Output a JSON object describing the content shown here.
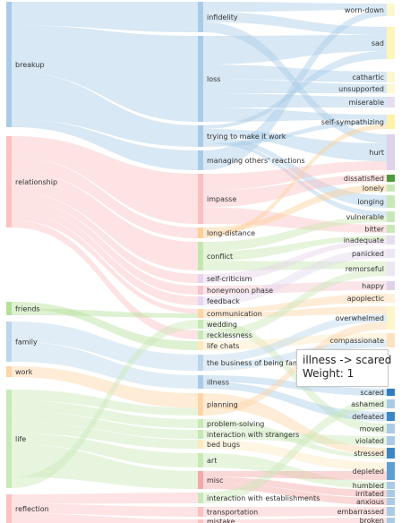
{
  "tooltip": {
    "line1": "illness -> scared",
    "line2": "Weight: 1"
  },
  "sources": [
    {
      "label": "breakup",
      "color": "#a9cbe6"
    },
    {
      "label": "relationship",
      "color": "#fbc1c1"
    },
    {
      "label": "friends",
      "color": "#b5df9c"
    },
    {
      "label": "family",
      "color": "#bcd6ea"
    },
    {
      "label": "work",
      "color": "#fdd5a6"
    },
    {
      "label": "life",
      "color": "#c9e8b8"
    },
    {
      "label": "reflection",
      "color": "#fbc1c1"
    }
  ],
  "middle": [
    {
      "label": "infidelity",
      "color": "#a9cbe6"
    },
    {
      "label": "loss",
      "color": "#a9cbe6"
    },
    {
      "label": "trying to make it work",
      "color": "#a9cbe6"
    },
    {
      "label": "managing others' reactions",
      "color": "#a9cbe6"
    },
    {
      "label": "impasse",
      "color": "#fbc1c1"
    },
    {
      "label": "long-distance",
      "color": "#fdd09a"
    },
    {
      "label": "conflict",
      "color": "#c6e6b0"
    },
    {
      "label": "self-criticism",
      "color": "#e7d3ea"
    },
    {
      "label": "honeymoon phase",
      "color": "#f4c6cf"
    },
    {
      "label": "feedback",
      "color": "#e3d6ee"
    },
    {
      "label": "communication",
      "color": "#fdd5a6"
    },
    {
      "label": "wedding",
      "color": "#c9e8b8"
    },
    {
      "label": "recklessness",
      "color": "#c9e8b8"
    },
    {
      "label": "life chats",
      "color": "#fde9bf"
    },
    {
      "label": "the business of being family",
      "color": "#bcd6ea"
    },
    {
      "label": "illness",
      "color": "#a9cbe6"
    },
    {
      "label": "planning",
      "color": "#fdd5a6"
    },
    {
      "label": "problem-solving",
      "color": "#c9e8b8"
    },
    {
      "label": "interaction with strangers",
      "color": "#c9e8b8"
    },
    {
      "label": "bed bugs",
      "color": "#fde9bf"
    },
    {
      "label": "art",
      "color": "#c9e8b8"
    },
    {
      "label": "misc",
      "color": "#f4a9a9"
    },
    {
      "label": "interaction with establishments",
      "color": "#c9e8b8"
    },
    {
      "label": "transportation",
      "color": "#fbc1c1"
    },
    {
      "label": "mistake",
      "color": "#fbc1c1"
    }
  ],
  "emotions": [
    {
      "label": "worn-down",
      "color": "#fdf8cf"
    },
    {
      "label": "sad",
      "color": "#fdf6b8"
    },
    {
      "label": "cathartic",
      "color": "#fdf8cf"
    },
    {
      "label": "unsupported",
      "color": "#fdf8cf"
    },
    {
      "label": "miserable",
      "color": "#e8dcf0"
    },
    {
      "label": "self-sympathizing",
      "color": "#fdf3a6"
    },
    {
      "label": "hurt",
      "color": "#ded3ea"
    },
    {
      "label": "dissatisfied",
      "color": "#4c9a3c"
    },
    {
      "label": "lonely",
      "color": "#c9e8b8"
    },
    {
      "label": "longing",
      "color": "#c9e8b8"
    },
    {
      "label": "vulnerable",
      "color": "#c9e8b8"
    },
    {
      "label": "bitter",
      "color": "#c9e8b8"
    },
    {
      "label": "inadequate",
      "color": "#e8dcf0"
    },
    {
      "label": "panicked",
      "color": "#ede6f3"
    },
    {
      "label": "remorseful",
      "color": "#ede6f3"
    },
    {
      "label": "happy",
      "color": "#ded3ea"
    },
    {
      "label": "apoplectic",
      "color": "#fdf1d8"
    },
    {
      "label": "overwhelmed",
      "color": "#fdf6c8"
    },
    {
      "label": "compassionate",
      "color": "#fde2bf"
    },
    {
      "label": "scared",
      "color": "#2f7dbf"
    },
    {
      "label": "ashamed",
      "color": "#a9cbe6"
    },
    {
      "label": "defeated",
      "color": "#3b86c6"
    },
    {
      "label": "moved",
      "color": "#a9cbe6"
    },
    {
      "label": "violated",
      "color": "#a9cbe6"
    },
    {
      "label": "stressed",
      "color": "#3b86c6"
    },
    {
      "label": "depleted",
      "color": "#5f9fd2"
    },
    {
      "label": "humbled",
      "color": "#a9cbe6"
    },
    {
      "label": "irritated",
      "color": "#a9cbe6"
    },
    {
      "label": "anxious",
      "color": "#a9cbe6"
    },
    {
      "label": "embarrassed",
      "color": "#a9cbe6"
    },
    {
      "label": "broken",
      "color": "#a9cbe6"
    }
  ],
  "links": [
    [
      "breakup",
      "infidelity",
      3
    ],
    [
      "breakup",
      "loss",
      6
    ],
    [
      "breakup",
      "trying to make it work",
      6
    ],
    [
      "breakup",
      "managing others' reactions",
      1
    ],
    [
      "relationship",
      "impasse",
      3
    ],
    [
      "relationship",
      "long-distance",
      2
    ],
    [
      "relationship",
      "conflict",
      3
    ],
    [
      "relationship",
      "self-criticism",
      1
    ],
    [
      "relationship",
      "honeymoon phase",
      1
    ],
    [
      "relationship",
      "feedback",
      1
    ],
    [
      "relationship",
      "communication",
      1
    ],
    [
      "relationship",
      "recklessness",
      1
    ],
    [
      "friends",
      "life chats",
      1
    ],
    [
      "friends",
      "communication",
      1
    ],
    [
      "family",
      "the business of being family",
      2
    ],
    [
      "family",
      "illness",
      2
    ],
    [
      "work",
      "planning",
      2
    ],
    [
      "life",
      "planning",
      1
    ],
    [
      "life",
      "problem-solving",
      1
    ],
    [
      "life",
      "interaction with strangers",
      1
    ],
    [
      "life",
      "bed bugs",
      1
    ],
    [
      "life",
      "art",
      1
    ],
    [
      "life",
      "misc",
      3
    ],
    [
      "life",
      "wedding",
      1
    ],
    [
      "reflection",
      "interaction with establishments",
      1
    ],
    [
      "reflection",
      "transportation",
      1
    ],
    [
      "reflection",
      "mistake",
      1
    ],
    [
      "infidelity",
      "worn-down",
      1
    ],
    [
      "infidelity",
      "sad",
      1
    ],
    [
      "infidelity",
      "hurt",
      1
    ],
    [
      "loss",
      "sad",
      2
    ],
    [
      "loss",
      "cathartic",
      1
    ],
    [
      "loss",
      "unsupported",
      1
    ],
    [
      "loss",
      "miserable",
      1
    ],
    [
      "loss",
      "self-sympathizing",
      1
    ],
    [
      "trying to make it work",
      "sad",
      1
    ],
    [
      "trying to make it work",
      "hurt",
      2
    ],
    [
      "trying to make it work",
      "longing",
      1
    ],
    [
      "trying to make it work",
      "vulnerable",
      1
    ],
    [
      "trying to make it work",
      "self-sympathizing",
      1
    ],
    [
      "managing others' reactions",
      "worn-down",
      1
    ],
    [
      "impasse",
      "hurt",
      1
    ],
    [
      "impasse",
      "dissatisfied",
      1
    ],
    [
      "impasse",
      "bitter",
      1
    ],
    [
      "long-distance",
      "lonely",
      1
    ],
    [
      "long-distance",
      "self-sympathizing",
      1
    ],
    [
      "conflict",
      "vulnerable",
      1
    ],
    [
      "conflict",
      "inadequate",
      1
    ],
    [
      "conflict",
      "remorseful",
      1
    ],
    [
      "self-criticism",
      "inadequate",
      1
    ],
    [
      "honeymoon phase",
      "happy",
      1
    ],
    [
      "feedback",
      "panicked",
      1
    ],
    [
      "communication",
      "apoplectic",
      1
    ],
    [
      "communication",
      "overwhelmed",
      1
    ],
    [
      "wedding",
      "moved",
      1
    ],
    [
      "recklessness",
      "remorseful",
      1
    ],
    [
      "life chats",
      "compassionate",
      1
    ],
    [
      "the business of being family",
      "overwhelmed",
      1
    ],
    [
      "the business of being family",
      "compassionate",
      1
    ],
    [
      "illness",
      "scared",
      1
    ],
    [
      "illness",
      "defeated",
      1
    ],
    [
      "planning",
      "stressed",
      2
    ],
    [
      "planning",
      "overwhelmed",
      1
    ],
    [
      "problem-solving",
      "stressed",
      1
    ],
    [
      "interaction with strangers",
      "violated",
      1
    ],
    [
      "bed bugs",
      "depleted",
      1
    ],
    [
      "art",
      "humbled",
      1
    ],
    [
      "misc",
      "depleted",
      1
    ],
    [
      "misc",
      "irritated",
      1
    ],
    [
      "misc",
      "anxious",
      1
    ],
    [
      "interaction with establishments",
      "ashamed",
      1
    ],
    [
      "transportation",
      "embarrassed",
      1
    ],
    [
      "mistake",
      "broken",
      1
    ]
  ]
}
